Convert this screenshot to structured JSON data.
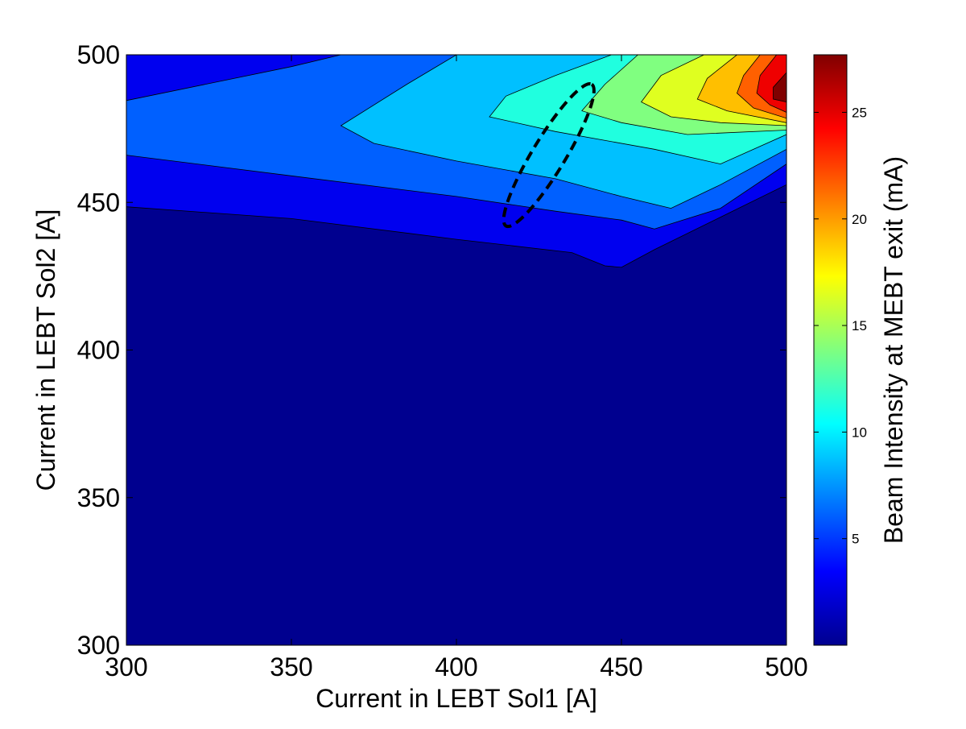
{
  "chart_data": {
    "type": "heatmap",
    "subtype": "filled-contour",
    "title": "",
    "xlabel": "Current in LEBT Sol1 [A]",
    "ylabel": "Current in LEBT Sol2 [A]",
    "colorbar_label": "Beam Intensity at MEBT exit (mA)",
    "xlim": [
      300,
      500
    ],
    "ylim": [
      300,
      500
    ],
    "x_ticks": [
      "300",
      "350",
      "400",
      "450",
      "500"
    ],
    "y_ticks": [
      "300",
      "350",
      "400",
      "450",
      "500"
    ],
    "colorbar_range": [
      0,
      27.7
    ],
    "colorbar_ticks": [
      "5",
      "10",
      "15",
      "20",
      "25"
    ],
    "colormap": "jet",
    "grid": false,
    "contour_levels": [
      {
        "level": 0,
        "color": "#00008F"
      },
      {
        "level": 3.4,
        "color": "#0000EF"
      },
      {
        "level": 5.2,
        "color": "#0060FF"
      },
      {
        "level": 8.6,
        "color": "#00C0FF"
      },
      {
        "level": 12.1,
        "color": "#20FFDF"
      },
      {
        "level": 15.6,
        "color": "#80FF80"
      },
      {
        "level": 18.0,
        "color": "#DFFF20"
      },
      {
        "level": 20.5,
        "color": "#FFBF00"
      },
      {
        "level": 23.0,
        "color": "#FF6000"
      },
      {
        "level": 25.5,
        "color": "#EF0000"
      },
      {
        "level": 27.0,
        "color": "#800000"
      }
    ],
    "contour_boundaries": [
      {
        "points": [
          [
            300,
            448.5
          ],
          [
            350,
            444.5
          ],
          [
            400,
            437.5
          ],
          [
            435,
            433
          ],
          [
            445,
            428.5
          ],
          [
            450,
            428
          ],
          [
            460,
            434
          ],
          [
            480,
            445
          ],
          [
            500,
            456
          ]
        ]
      },
      {
        "points": [
          [
            300,
            466
          ],
          [
            350,
            459
          ],
          [
            400,
            452
          ],
          [
            430,
            447
          ],
          [
            450,
            444
          ],
          [
            460,
            441
          ],
          [
            480,
            448
          ],
          [
            500,
            463
          ]
        ]
      },
      {
        "points": [
          [
            300,
            484.5
          ],
          [
            350,
            496
          ],
          [
            365,
            500
          ]
        ]
      },
      {
        "points": [
          [
            440,
            500
          ],
          [
            400,
            500
          ],
          [
            385,
            490
          ],
          [
            365,
            476
          ],
          [
            375,
            470
          ],
          [
            400,
            464
          ],
          [
            430,
            458
          ],
          [
            450,
            452
          ],
          [
            465,
            448
          ],
          [
            480,
            456
          ],
          [
            500,
            468
          ]
        ]
      },
      {
        "points": [
          [
            447,
            500
          ],
          [
            430,
            493
          ],
          [
            415,
            486
          ],
          [
            410,
            479
          ],
          [
            430,
            474
          ],
          [
            460,
            468
          ],
          [
            480,
            463
          ],
          [
            500,
            473
          ]
        ]
      },
      {
        "points": [
          [
            455,
            500
          ],
          [
            445,
            490
          ],
          [
            438,
            481
          ],
          [
            450,
            477
          ],
          [
            470,
            473
          ],
          [
            500,
            474.5
          ]
        ]
      },
      {
        "points": [
          [
            475,
            500
          ],
          [
            462,
            493
          ],
          [
            456,
            484
          ],
          [
            465,
            479
          ],
          [
            480,
            477
          ],
          [
            500,
            476
          ]
        ]
      },
      {
        "points": [
          [
            485,
            500
          ],
          [
            476,
            492
          ],
          [
            473,
            485
          ],
          [
            482,
            481
          ],
          [
            500,
            477
          ]
        ]
      },
      {
        "points": [
          [
            492,
            500
          ],
          [
            487,
            493
          ],
          [
            485,
            487
          ],
          [
            490,
            482
          ],
          [
            500,
            478.5
          ]
        ]
      },
      {
        "points": [
          [
            497,
            500
          ],
          [
            492,
            493
          ],
          [
            491,
            487
          ],
          [
            495,
            483
          ],
          [
            500,
            480.5
          ]
        ]
      },
      {
        "points": [
          [
            500,
            494
          ],
          [
            496,
            489
          ],
          [
            496,
            485
          ],
          [
            500,
            484
          ]
        ]
      }
    ],
    "annotations": [
      {
        "type": "dashed-ellipse",
        "center": [
          428,
          466
        ],
        "ends": [
          [
            415,
            442
          ],
          [
            441,
            490
          ]
        ],
        "minor_half_width_sol1": 5
      }
    ]
  }
}
